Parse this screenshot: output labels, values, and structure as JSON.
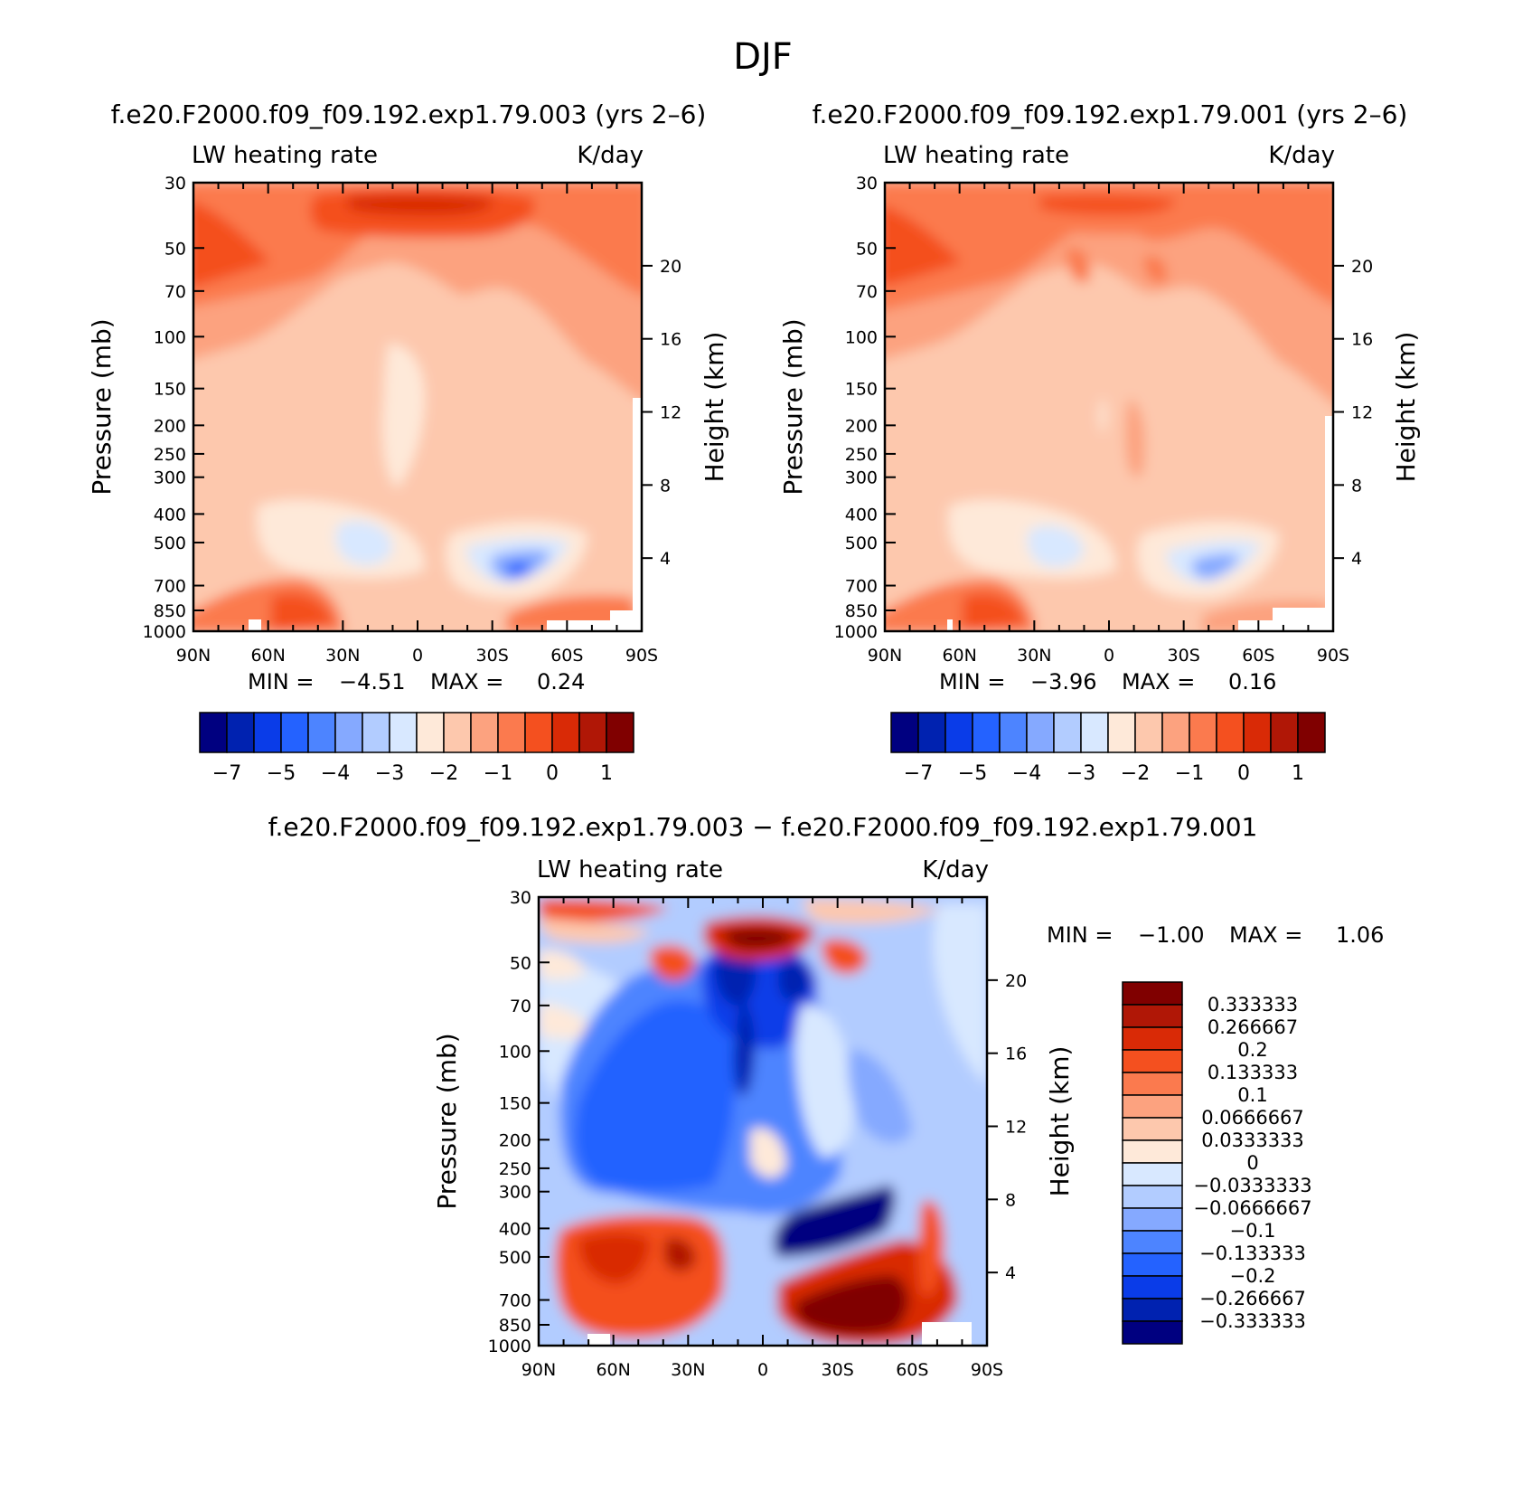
{
  "figure": {
    "title": "DJF",
    "colors": {
      "base_colorbar": [
        "#000080",
        "#0022b0",
        "#0a3ce8",
        "#2462ff",
        "#4d84ff",
        "#85a9ff",
        "#b2ccff",
        "#d8e8ff",
        "#fee9d9",
        "#fdc8ad",
        "#fca27f",
        "#fb7a4e",
        "#f4501f",
        "#d92a06",
        "#b01706",
        "#800000"
      ],
      "diff_colorbar": [
        "#800000",
        "#b01706",
        "#d92a06",
        "#f4501f",
        "#fb7a4e",
        "#fca27f",
        "#fdc8ad",
        "#fee9d9",
        "#d8e8ff",
        "#b2ccff",
        "#85a9ff",
        "#4d84ff",
        "#2462ff",
        "#0a3ce8",
        "#0022b0",
        "#000080"
      ]
    }
  },
  "chart_data": [
    {
      "type": "heatmap",
      "title": "f.e20.F2000.f09_f09.192.exp1.79.003 (yrs 2–6)",
      "left_string": "LW heating rate",
      "right_string": "K/day",
      "xlabel": "",
      "ylabel": "Pressure (mb)",
      "y2label": "Height (km)",
      "x_ticks": [
        "90N",
        "60N",
        "30N",
        "0",
        "30S",
        "60S",
        "90S"
      ],
      "y_ticks": [
        30,
        50,
        70,
        100,
        150,
        200,
        250,
        300,
        400,
        500,
        700,
        850,
        1000
      ],
      "y2_ticks": [
        20,
        16,
        12,
        8,
        4
      ],
      "xlim": [
        90,
        -90
      ],
      "ylim": [
        1000,
        30
      ],
      "y_scale": "log",
      "stats": {
        "min_label": "MIN =",
        "min": "−4.51",
        "max_label": "MAX =",
        "max": "0.24"
      },
      "colorbar_labels": [
        "−7",
        "−5",
        "−4",
        "−3",
        "−2",
        "−1",
        "0",
        "1"
      ]
    },
    {
      "type": "heatmap",
      "title": "f.e20.F2000.f09_f09.192.exp1.79.001 (yrs 2–6)",
      "left_string": "LW heating rate",
      "right_string": "K/day",
      "xlabel": "",
      "ylabel": "Pressure (mb)",
      "y2label": "Height (km)",
      "x_ticks": [
        "90N",
        "60N",
        "30N",
        "0",
        "30S",
        "60S",
        "90S"
      ],
      "y_ticks": [
        30,
        50,
        70,
        100,
        150,
        200,
        250,
        300,
        400,
        500,
        700,
        850,
        1000
      ],
      "y2_ticks": [
        20,
        16,
        12,
        8,
        4
      ],
      "xlim": [
        90,
        -90
      ],
      "ylim": [
        1000,
        30
      ],
      "y_scale": "log",
      "stats": {
        "min_label": "MIN =",
        "min": "−3.96",
        "max_label": "MAX =",
        "max": "0.16"
      },
      "colorbar_labels": [
        "−7",
        "−5",
        "−4",
        "−3",
        "−2",
        "−1",
        "0",
        "1"
      ]
    },
    {
      "type": "heatmap",
      "title": "f.e20.F2000.f09_f09.192.exp1.79.003 − f.e20.F2000.f09_f09.192.exp1.79.001",
      "left_string": "LW heating rate",
      "right_string": "K/day",
      "xlabel": "",
      "ylabel": "Pressure (mb)",
      "y2label": "Height (km)",
      "x_ticks": [
        "90N",
        "60N",
        "30N",
        "0",
        "30S",
        "60S",
        "90S"
      ],
      "y_ticks": [
        30,
        50,
        70,
        100,
        150,
        200,
        250,
        300,
        400,
        500,
        700,
        850,
        1000
      ],
      "y2_ticks": [
        20,
        16,
        12,
        8,
        4
      ],
      "xlim": [
        90,
        -90
      ],
      "ylim": [
        1000,
        30
      ],
      "y_scale": "log",
      "stats": {
        "min_label": "MIN =",
        "min": "−1.00",
        "max_label": "MAX =",
        "max": "1.06"
      },
      "colorbar_labels": [
        "0.333333",
        "0.266667",
        "0.2",
        "0.133333",
        "0.1",
        "0.0666667",
        "0.0333333",
        "0",
        "−0.0333333",
        "−0.0666667",
        "−0.1",
        "−0.133333",
        "−0.2",
        "−0.266667",
        "−0.333333"
      ]
    }
  ]
}
